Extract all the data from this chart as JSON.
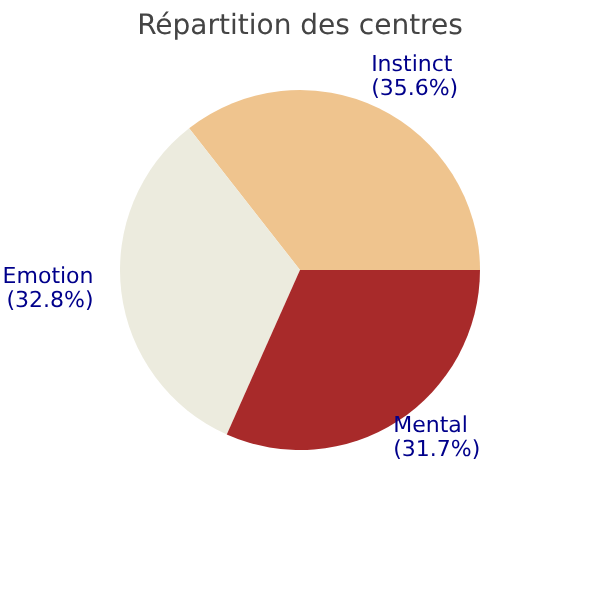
{
  "chart_data": {
    "type": "pie",
    "title": "Répartition des centres",
    "categories": [
      "Instinct",
      "Emotion",
      "Mental"
    ],
    "values": [
      35.6,
      32.8,
      31.7
    ],
    "value_labels": [
      "(35.6%)",
      "(32.8%)",
      "(31.7%)"
    ],
    "colors": [
      "#efc48e",
      "#ecebde",
      "#a82a2a"
    ]
  }
}
